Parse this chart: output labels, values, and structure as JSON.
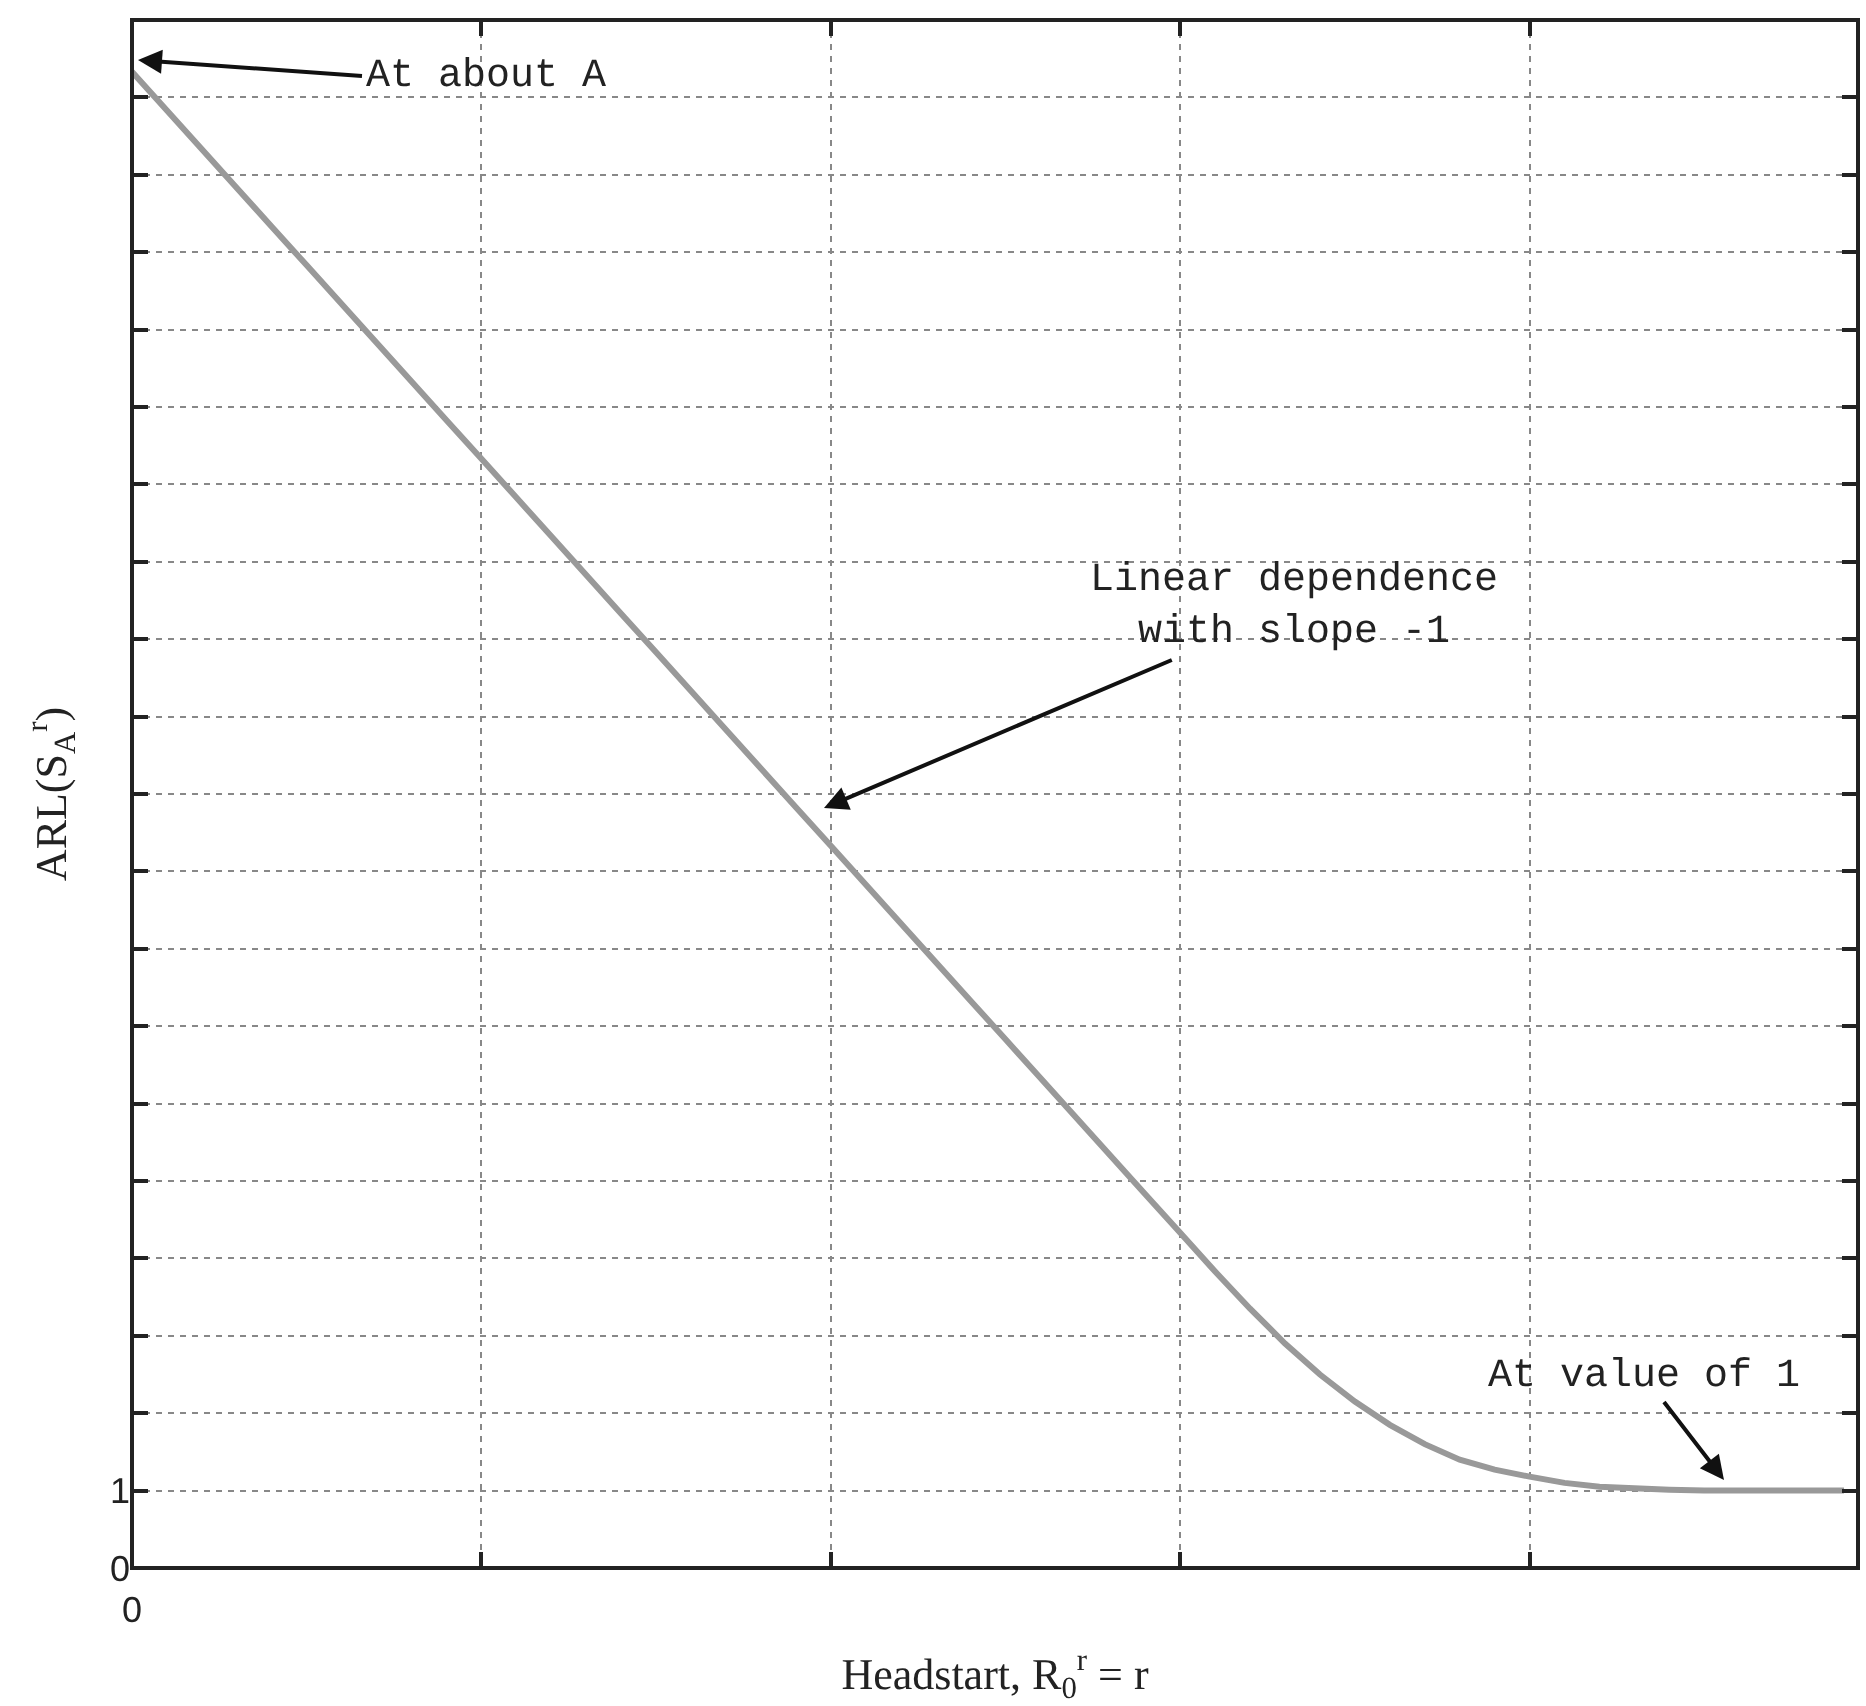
{
  "chart_data": {
    "type": "line",
    "xlabel": "Headstart, R$_{0}$$^{r}$ = r",
    "ylabel": "ARL(S$_{A}$$^{r}$)",
    "categories": [
      "0",
      null,
      null,
      null,
      null,
      null,
      null,
      null,
      null,
      null,
      null,
      null,
      null,
      null,
      null,
      null,
      null,
      null,
      null,
      null,
      null,
      null,
      null,
      null,
      null,
      null,
      null,
      null,
      null,
      null,
      null,
      null,
      null,
      null,
      null,
      null,
      null,
      null,
      null,
      null,
      null,
      null,
      null,
      null,
      null,
      null,
      null,
      null,
      null,
      null
    ],
    "series": [
      {
        "color": "#999999",
        "values": [
          19.33,
          18.83,
          18.33,
          17.83,
          17.33,
          16.83,
          16.33,
          15.83,
          15.33,
          14.83,
          14.33,
          13.83,
          13.33,
          12.83,
          12.33,
          11.83,
          11.33,
          10.83,
          10.33,
          9.83,
          9.33,
          8.83,
          8.33,
          7.83,
          7.33,
          6.83,
          6.33,
          5.83,
          5.33,
          4.83,
          4.33,
          3.83,
          3.35,
          2.9,
          2.5,
          2.15,
          1.85,
          1.6,
          1.4,
          1.27,
          1.18,
          1.1,
          1.05,
          1.03,
          1.01,
          1.0,
          1.0,
          1.0,
          1.0,
          1.0
        ]
      }
    ],
    "ylim": [
      0,
      20
    ],
    "yticks": [
      0,
      1,
      {
        "value": 2,
        "label": null
      },
      {
        "value": 3,
        "label": null
      },
      {
        "value": 4,
        "label": null
      },
      {
        "value": 5,
        "label": null
      },
      {
        "value": 6,
        "label": null
      },
      {
        "value": 7,
        "label": null
      },
      {
        "value": 8,
        "label": null
      },
      {
        "value": 9,
        "label": null
      },
      {
        "value": 10,
        "label": null
      },
      {
        "value": 11,
        "label": null
      },
      {
        "value": 12,
        "label": null
      },
      {
        "value": 13,
        "label": null
      },
      {
        "value": 14,
        "label": null
      },
      {
        "value": 15,
        "label": null
      },
      {
        "value": 16,
        "label": null
      },
      {
        "value": 17,
        "label": null
      },
      {
        "value": 18,
        "label": null
      },
      {
        "value": 19,
        "label": null
      }
    ],
    "annotations": [
      "At about A",
      "Linear dependence\nwith slope -1",
      "At value of 1"
    ],
    "grid": true,
    "marker": "none",
    "line_style": "solid"
  }
}
